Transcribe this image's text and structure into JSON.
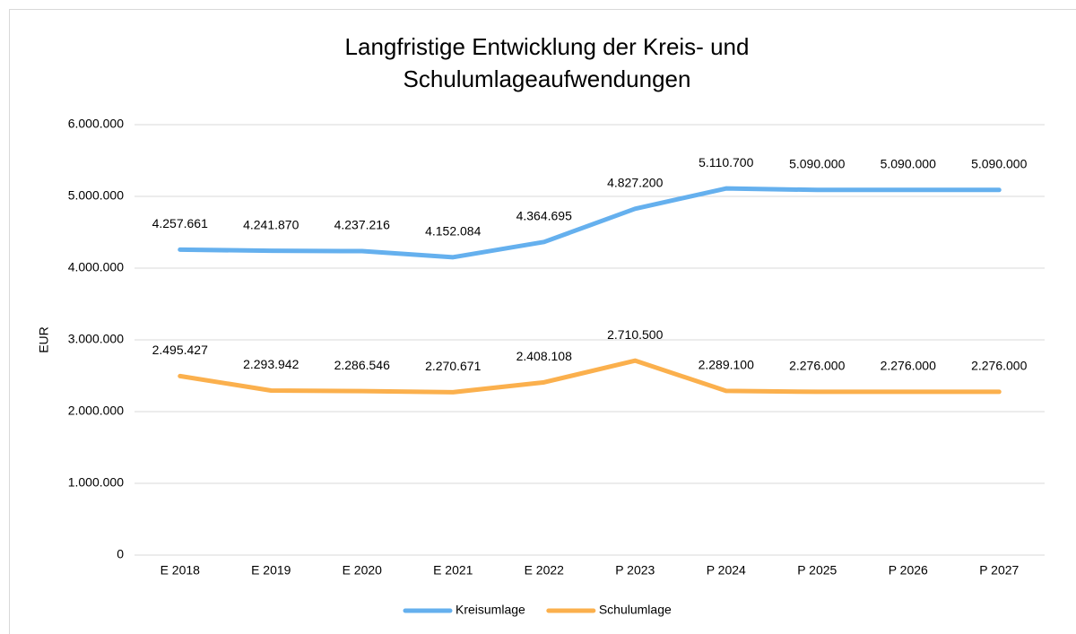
{
  "chart_data": {
    "type": "line",
    "title": "Langfristige Entwicklung der Kreis- und Schulumlageaufwendungen",
    "ylabel": "EUR",
    "categories": [
      "E 2018",
      "E 2019",
      "E 2020",
      "E 2021",
      "E 2022",
      "P 2023",
      "P 2024",
      "P 2025",
      "P 2026",
      "P 2027"
    ],
    "series": [
      {
        "name": "Kreisumlage",
        "color": "#65b0ee",
        "values": [
          4257661,
          4241870,
          4237216,
          4152084,
          4364695,
          4827200,
          5110700,
          5090000,
          5090000,
          5090000
        ],
        "value_labels": [
          "4.257.661",
          "4.241.870",
          "4.237.216",
          "4.152.084",
          "4.364.695",
          "4.827.200",
          "5.110.700",
          "5.090.000",
          "5.090.000",
          "5.090.000"
        ]
      },
      {
        "name": "Schulumlage",
        "color": "#fbb04d",
        "values": [
          2495427,
          2293942,
          2286546,
          2270671,
          2408108,
          2710500,
          2289100,
          2276000,
          2276000,
          2276000
        ],
        "value_labels": [
          "2.495.427",
          "2.293.942",
          "2.286.546",
          "2.270.671",
          "2.408.108",
          "2.710.500",
          "2.289.100",
          "2.276.000",
          "2.276.000",
          "2.276.000"
        ]
      }
    ],
    "ylim": [
      0,
      6000000
    ],
    "yticks": [
      0,
      {
        "value": 1000000,
        "label": "1.000.000"
      },
      {
        "value": 2000000,
        "label": "2.000.000"
      },
      {
        "value": 3000000,
        "label": "3.000.000"
      },
      {
        "value": 4000000,
        "label": "4.000.000"
      },
      {
        "value": 5000000,
        "label": "5.000.000"
      },
      {
        "value": 6000000,
        "label": "6.000.000"
      }
    ],
    "grid": true,
    "legend": "bottom"
  }
}
